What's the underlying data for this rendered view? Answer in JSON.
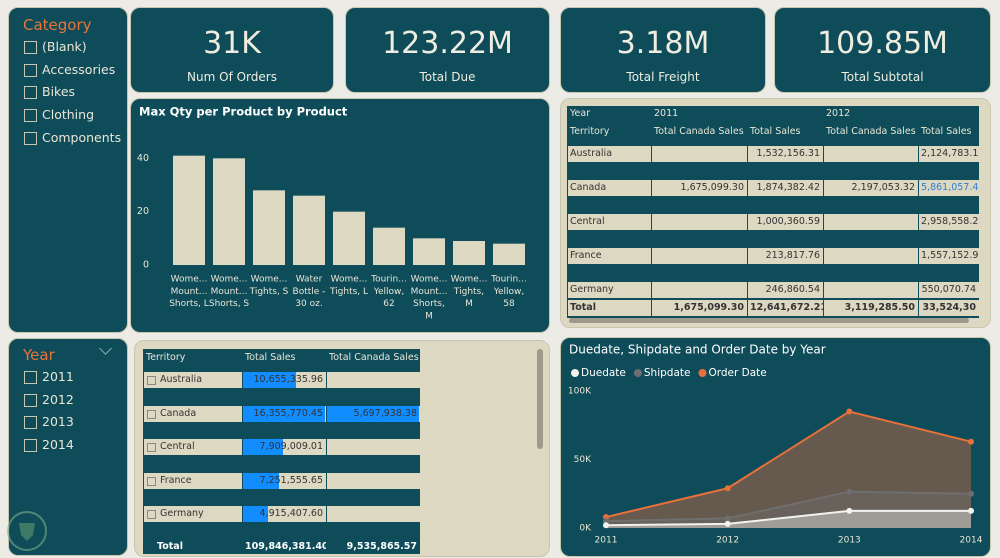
{
  "category_slicer": {
    "title": "Category",
    "items": [
      "(Blank)",
      "Accessories",
      "Bikes",
      "Clothing",
      "Components"
    ]
  },
  "year_slicer": {
    "title": "Year",
    "items": [
      "2011",
      "2012",
      "2013",
      "2014"
    ]
  },
  "cards": [
    {
      "value": "31K",
      "label": "Num Of Orders"
    },
    {
      "value": "123.22M",
      "label": "Total Due"
    },
    {
      "value": "3.18M",
      "label": "Total Freight"
    },
    {
      "value": "109.85M",
      "label": "Total Subtotal"
    }
  ],
  "chart_data": [
    {
      "type": "bar",
      "title": "Max Qty per Product by Product",
      "categories": [
        [
          "Wome...",
          "Mount...",
          "Shorts, L"
        ],
        [
          "Wome...",
          "Mount...",
          "Shorts, S"
        ],
        [
          "Wome...",
          "Tights, S"
        ],
        [
          "Water",
          "Bottle -",
          "30 oz."
        ],
        [
          "Wome...",
          "Tights, L"
        ],
        [
          "Tourin...",
          "Yellow,",
          "62"
        ],
        [
          "Wome...",
          "Mount...",
          "Shorts,",
          "M"
        ],
        [
          "Wome...",
          "Tights,",
          "M"
        ],
        [
          "Tourin...",
          "Yellow,",
          "58"
        ]
      ],
      "values": [
        41,
        40,
        28,
        26,
        20,
        14,
        10,
        9,
        8
      ],
      "color": "#dcd8c2",
      "ylim": [
        0,
        42
      ],
      "yticks": [
        0,
        20,
        40
      ]
    },
    {
      "type": "area",
      "title": "Duedate, Shipdate and Order Date by Year",
      "categories": [
        "2011",
        "2012",
        "2013",
        "2014"
      ],
      "series": [
        {
          "name": "Duedate",
          "color": "#f2f2ee",
          "values": [
            2000,
            3000,
            12500,
            12500
          ]
        },
        {
          "name": "Shipdate",
          "color": "#6f6f6f",
          "values": [
            5000,
            7000,
            26500,
            25000
          ]
        },
        {
          "name": "Order Date",
          "color": "#e8703a",
          "values": [
            8000,
            29000,
            85000,
            63000
          ]
        }
      ],
      "ylim": [
        0,
        100000
      ],
      "yticks": [
        {
          "value": 0,
          "label": "0K"
        },
        {
          "value": 50000,
          "label": "50K"
        },
        {
          "value": 100000,
          "label": "100K"
        }
      ],
      "legend": "top-left"
    }
  ],
  "matrix_table": {
    "headers": [
      [
        "Year",
        "2011",
        "2012"
      ],
      [
        "Territory",
        "Total Canada Sales",
        "Total Sales",
        "Total Canada Sales",
        "Total Sales"
      ]
    ],
    "rows": [
      [
        "Australia",
        null,
        "1,532,156.31",
        null,
        "2,124,783.1"
      ],
      [
        "Canada",
        "1,675,099.30",
        "1,874,382.42",
        "2,197,053.32",
        "5,861,057.4"
      ],
      [
        "Central",
        null,
        "1,000,360.59",
        null,
        "2,958,558.2"
      ],
      [
        "France",
        null,
        "213,817.76",
        null,
        "1,557,152.9"
      ],
      [
        "Germany",
        null,
        "246,860.54",
        null,
        "550,070.74"
      ],
      [
        "Total",
        "1,675,099.30",
        "12,641,672.21",
        "3,119,285.50",
        "33,524,30"
      ]
    ]
  },
  "territory_table": {
    "headers": [
      "Territory",
      "Total Sales",
      "Total Canada Sales"
    ],
    "rows": [
      [
        "Australia",
        "10,655,335.96",
        null
      ],
      [
        "Canada",
        "16,355,770.45",
        "5,697,938.38"
      ],
      [
        "Central",
        "7,909,009.01",
        null
      ],
      [
        "France",
        "7,251,555.65",
        null
      ],
      [
        "Germany",
        "4,915,407.60",
        null
      ]
    ],
    "total": [
      "Total",
      "109,846,381.40",
      "9,535,865.57"
    ]
  }
}
